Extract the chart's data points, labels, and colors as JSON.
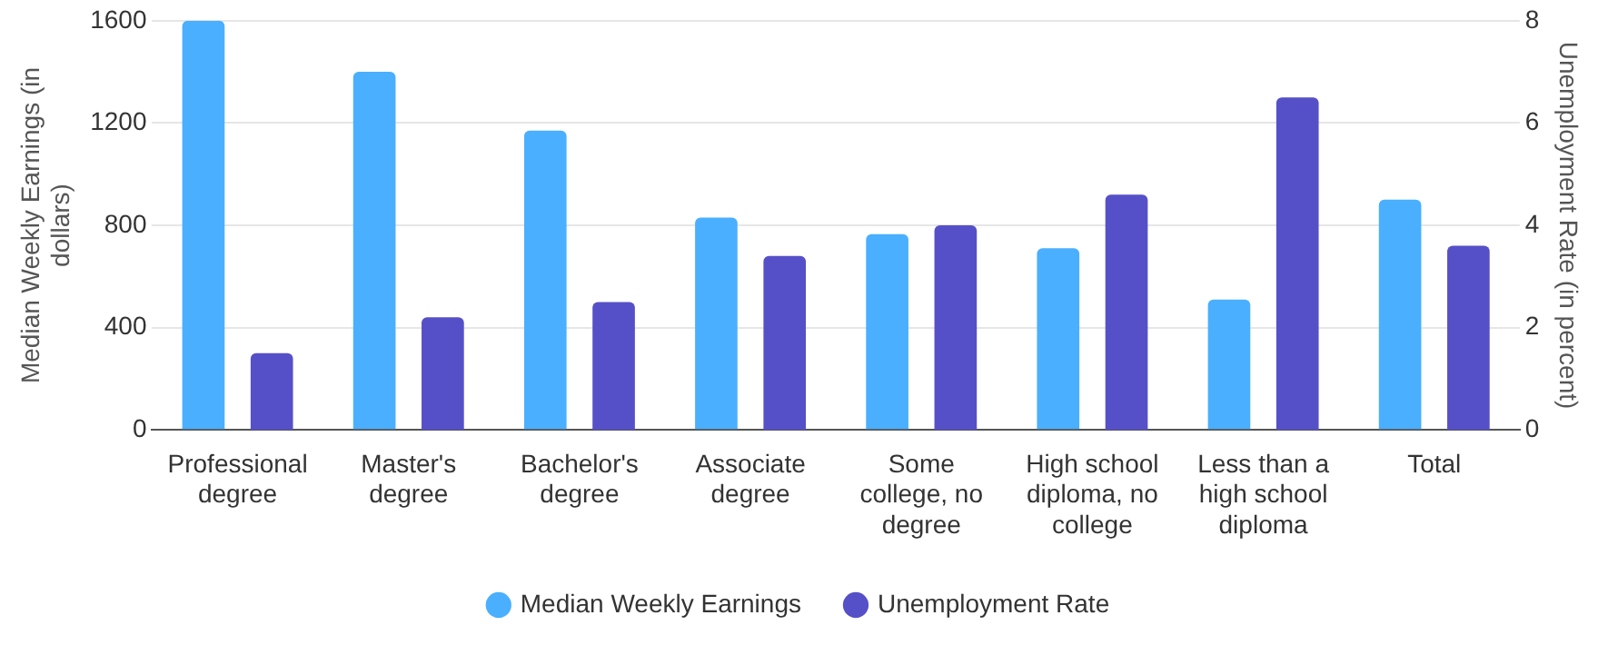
{
  "chart_data": {
    "type": "bar",
    "categories": [
      "Professional degree",
      "Master's degree",
      "Bachelor's degree",
      "Associate degree",
      "Some college, no degree",
      "High school diploma, no college",
      "Less than a high school diploma",
      "Total"
    ],
    "series": [
      {
        "name": "Median Weekly Earnings",
        "color": "#4aaffe",
        "values": [
          1600,
          1400,
          1170,
          830,
          765,
          710,
          510,
          900
        ]
      },
      {
        "name": "Unemployment Rate",
        "color": "#5650c8",
        "axis": "y2",
        "values": [
          1.5,
          2.2,
          2.5,
          3.4,
          4.0,
          4.6,
          6.5,
          3.6
        ]
      }
    ],
    "ylabel": "Median Weekly Earnings (in dollars)",
    "y2label": "Unemployment Rate (in percent)",
    "ylim": [
      0,
      1600
    ],
    "yticks": [
      0,
      400,
      800,
      1200,
      1600
    ],
    "y2lim": [
      0,
      8
    ],
    "y2ticks": [
      0,
      2,
      4,
      6,
      8
    ],
    "grid": "y",
    "legend": "bottom"
  }
}
